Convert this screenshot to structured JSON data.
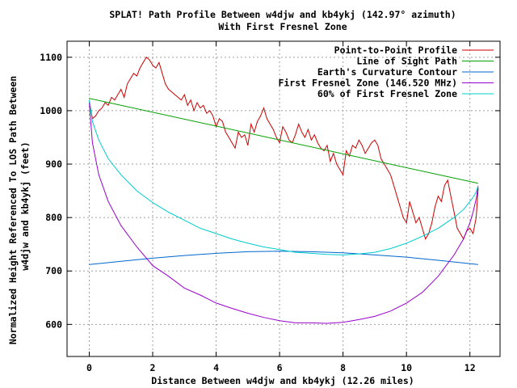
{
  "chart_data": {
    "type": "line",
    "title": "SPLAT! Path Profile Between w4djw and kb4ykj (142.97° azimuth)",
    "subtitle": "With First Fresnel Zone",
    "xlabel": "Distance Between w4djw and kb4ykj (12.26 miles)",
    "ylabel_line1": "Normalized Height Referenced To LOS Path Between",
    "ylabel_line2": "w4djw and kb4ykj (feet)",
    "xlim": [
      -0.7,
      12.95
    ],
    "ylim": [
      540,
      1130
    ],
    "xticks": [
      0,
      2,
      4,
      6,
      8,
      10,
      12
    ],
    "yticks": [
      600,
      700,
      800,
      900,
      1000,
      1100
    ],
    "grid": true,
    "legend_position": "top-right",
    "series": [
      {
        "name": "Point-to-Point Profile",
        "color": "#cc0000",
        "x": [
          0.0,
          0.1,
          0.2,
          0.3,
          0.4,
          0.5,
          0.6,
          0.7,
          0.8,
          0.9,
          1.0,
          1.1,
          1.2,
          1.3,
          1.4,
          1.5,
          1.6,
          1.7,
          1.8,
          1.9,
          2.0,
          2.1,
          2.2,
          2.3,
          2.4,
          2.5,
          2.6,
          2.7,
          2.8,
          2.9,
          3.0,
          3.1,
          3.2,
          3.3,
          3.4,
          3.5,
          3.6,
          3.7,
          3.8,
          3.9,
          4.0,
          4.1,
          4.2,
          4.3,
          4.4,
          4.5,
          4.6,
          4.7,
          4.8,
          4.9,
          5.0,
          5.1,
          5.2,
          5.3,
          5.4,
          5.5,
          5.6,
          5.7,
          5.8,
          5.9,
          6.0,
          6.1,
          6.2,
          6.3,
          6.4,
          6.5,
          6.6,
          6.7,
          6.8,
          6.9,
          7.0,
          7.1,
          7.2,
          7.3,
          7.4,
          7.5,
          7.6,
          7.7,
          7.8,
          7.9,
          8.0,
          8.1,
          8.2,
          8.3,
          8.4,
          8.5,
          8.6,
          8.7,
          8.8,
          8.9,
          9.0,
          9.1,
          9.2,
          9.3,
          9.4,
          9.5,
          9.6,
          9.7,
          9.8,
          9.9,
          10.0,
          10.1,
          10.2,
          10.3,
          10.4,
          10.5,
          10.6,
          10.7,
          10.8,
          10.9,
          11.0,
          11.1,
          11.2,
          11.3,
          11.4,
          11.5,
          11.6,
          11.7,
          11.8,
          11.9,
          12.0,
          12.1,
          12.2,
          12.26
        ],
        "y": [
          1020,
          985,
          990,
          1000,
          1005,
          1015,
          1010,
          1025,
          1020,
          1030,
          1040,
          1025,
          1050,
          1060,
          1070,
          1065,
          1080,
          1090,
          1100,
          1095,
          1085,
          1080,
          1090,
          1070,
          1050,
          1040,
          1035,
          1030,
          1025,
          1020,
          1030,
          1010,
          1020,
          1000,
          1015,
          1005,
          1010,
          995,
          1000,
          990,
          970,
          985,
          980,
          960,
          950,
          940,
          930,
          960,
          950,
          955,
          935,
          975,
          960,
          980,
          990,
          1005,
          985,
          975,
          965,
          950,
          940,
          970,
          960,
          945,
          940,
          955,
          975,
          960,
          950,
          965,
          945,
          955,
          940,
          930,
          925,
          935,
          905,
          920,
          900,
          890,
          880,
          925,
          915,
          935,
          930,
          945,
          935,
          920,
          930,
          940,
          945,
          935,
          910,
          900,
          890,
          880,
          860,
          840,
          820,
          800,
          790,
          830,
          810,
          790,
          800,
          780,
          760,
          770,
          790,
          820,
          840,
          830,
          860,
          870,
          840,
          810,
          780,
          770,
          760,
          775,
          780,
          770,
          800,
          855
        ]
      },
      {
        "name": "Line of Sight Path",
        "color": "#00a000",
        "x": [
          0,
          12.26
        ],
        "y": [
          1023,
          864
        ]
      },
      {
        "name": "Earth's Curvature Contour",
        "color": "#0066cc",
        "x": [
          0,
          1,
          2,
          3,
          4,
          5,
          6,
          7,
          8,
          9,
          10,
          11,
          12.26
        ],
        "y": [
          712,
          718,
          724,
          729,
          733,
          736,
          737,
          736,
          734,
          730,
          726,
          720,
          712
        ]
      },
      {
        "name": "First Fresnel Zone (146.520 MHz)",
        "color": "#9900cc",
        "x": [
          0,
          0.1,
          0.3,
          0.6,
          1,
          1.5,
          2,
          2.5,
          3,
          3.5,
          4,
          4.5,
          5,
          5.5,
          6,
          6.5,
          7,
          7.5,
          8,
          8.5,
          9,
          9.5,
          10,
          10.5,
          11,
          11.5,
          11.8,
          12,
          12.1,
          12.2,
          12.26
        ],
        "y": [
          1015,
          940,
          880,
          830,
          785,
          745,
          710,
          690,
          668,
          655,
          640,
          630,
          621,
          613,
          607,
          603,
          603,
          602,
          604,
          609,
          615,
          625,
          640,
          660,
          690,
          730,
          760,
          790,
          810,
          835,
          858
        ]
      },
      {
        "name": "60% of First Fresnel Zone",
        "color": "#00cccc",
        "x": [
          0,
          0.1,
          0.3,
          0.6,
          1,
          1.5,
          2,
          2.5,
          3,
          3.5,
          4,
          4.5,
          5,
          5.5,
          6,
          6.5,
          7,
          7.5,
          8,
          8.5,
          9,
          9.5,
          10,
          10.5,
          11,
          11.5,
          11.8,
          12,
          12.1,
          12.2,
          12.26
        ],
        "y": [
          1020,
          980,
          945,
          910,
          880,
          850,
          828,
          810,
          795,
          780,
          770,
          760,
          752,
          745,
          740,
          735,
          733,
          731,
          730,
          732,
          735,
          742,
          752,
          765,
          780,
          800,
          815,
          830,
          838,
          848,
          860
        ]
      }
    ]
  }
}
